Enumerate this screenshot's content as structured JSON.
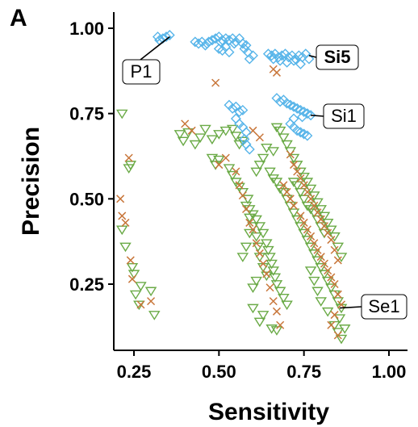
{
  "panel_label": "A",
  "chart_data": {
    "type": "scatter",
    "title": "",
    "xlabel": "Sensitivity",
    "ylabel": "Precision",
    "xlim": [
      0.2,
      1.05
    ],
    "ylim": [
      0.08,
      1.05
    ],
    "xticks": [
      0.25,
      0.5,
      0.75,
      1.0
    ],
    "xtick_labels": [
      "0.25",
      "0.50",
      "0.75",
      "1.00"
    ],
    "yticks": [
      0.25,
      0.5,
      0.75,
      1.0
    ],
    "ytick_labels": [
      "0.25",
      "0.50",
      "0.75",
      "1.00"
    ],
    "grid": false,
    "legend": "none",
    "colors": {
      "diamond": "#56B4E9",
      "triangle": "#6AAA46",
      "cross": "#C8763A"
    },
    "series": [
      {
        "marker": "diamond",
        "points": [
          [
            0.32,
            0.975
          ],
          [
            0.335,
            0.97
          ],
          [
            0.345,
            0.975
          ],
          [
            0.355,
            0.98
          ],
          [
            0.325,
            0.965
          ],
          [
            0.43,
            0.96
          ],
          [
            0.44,
            0.955
          ],
          [
            0.45,
            0.96
          ],
          [
            0.465,
            0.955
          ],
          [
            0.48,
            0.965
          ],
          [
            0.49,
            0.97
          ],
          [
            0.5,
            0.975
          ],
          [
            0.505,
            0.96
          ],
          [
            0.51,
            0.965
          ],
          [
            0.52,
            0.97
          ],
          [
            0.53,
            0.965
          ],
          [
            0.54,
            0.97
          ],
          [
            0.545,
            0.955
          ],
          [
            0.55,
            0.96
          ],
          [
            0.56,
            0.97
          ],
          [
            0.57,
            0.955
          ],
          [
            0.575,
            0.94
          ],
          [
            0.58,
            0.95
          ],
          [
            0.585,
            0.93
          ],
          [
            0.5,
            0.94
          ],
          [
            0.51,
            0.935
          ],
          [
            0.52,
            0.945
          ],
          [
            0.53,
            0.93
          ],
          [
            0.46,
            0.95
          ],
          [
            0.47,
            0.96
          ],
          [
            0.59,
            0.91
          ],
          [
            0.6,
            0.92
          ],
          [
            0.645,
            0.925
          ],
          [
            0.655,
            0.92
          ],
          [
            0.665,
            0.925
          ],
          [
            0.675,
            0.915
          ],
          [
            0.685,
            0.92
          ],
          [
            0.695,
            0.925
          ],
          [
            0.705,
            0.915
          ],
          [
            0.715,
            0.92
          ],
          [
            0.725,
            0.91
          ],
          [
            0.735,
            0.92
          ],
          [
            0.745,
            0.915
          ],
          [
            0.755,
            0.925
          ],
          [
            0.765,
            0.91
          ],
          [
            0.66,
            0.91
          ],
          [
            0.68,
            0.905
          ],
          [
            0.7,
            0.9
          ],
          [
            0.72,
            0.905
          ],
          [
            0.74,
            0.895
          ],
          [
            0.67,
            0.795
          ],
          [
            0.68,
            0.785
          ],
          [
            0.69,
            0.79
          ],
          [
            0.7,
            0.78
          ],
          [
            0.71,
            0.775
          ],
          [
            0.72,
            0.77
          ],
          [
            0.73,
            0.765
          ],
          [
            0.74,
            0.76
          ],
          [
            0.75,
            0.755
          ],
          [
            0.76,
            0.75
          ],
          [
            0.77,
            0.745
          ],
          [
            0.745,
            0.74
          ],
          [
            0.72,
            0.735
          ],
          [
            0.71,
            0.72
          ],
          [
            0.72,
            0.71
          ],
          [
            0.73,
            0.7
          ],
          [
            0.74,
            0.695
          ],
          [
            0.75,
            0.69
          ],
          [
            0.76,
            0.685
          ],
          [
            0.53,
            0.775
          ],
          [
            0.54,
            0.765
          ],
          [
            0.55,
            0.77
          ],
          [
            0.56,
            0.755
          ],
          [
            0.57,
            0.76
          ],
          [
            0.55,
            0.735
          ],
          [
            0.56,
            0.72
          ],
          [
            0.57,
            0.71
          ],
          [
            0.58,
            0.695
          ],
          [
            0.575,
            0.675
          ],
          [
            0.58,
            0.66
          ],
          [
            0.59,
            0.645
          ]
        ]
      },
      {
        "marker": "triangle",
        "points": [
          [
            0.215,
            0.75
          ],
          [
            0.235,
            0.59
          ],
          [
            0.215,
            0.41
          ],
          [
            0.225,
            0.36
          ],
          [
            0.24,
            0.6
          ],
          [
            0.245,
            0.3
          ],
          [
            0.25,
            0.28
          ],
          [
            0.255,
            0.22
          ],
          [
            0.27,
            0.245
          ],
          [
            0.3,
            0.23
          ],
          [
            0.265,
            0.19
          ],
          [
            0.31,
            0.16
          ],
          [
            0.385,
            0.69
          ],
          [
            0.395,
            0.67
          ],
          [
            0.41,
            0.695
          ],
          [
            0.43,
            0.66
          ],
          [
            0.445,
            0.68
          ],
          [
            0.46,
            0.705
          ],
          [
            0.48,
            0.675
          ],
          [
            0.5,
            0.69
          ],
          [
            0.52,
            0.7
          ],
          [
            0.54,
            0.705
          ],
          [
            0.55,
            0.685
          ],
          [
            0.56,
            0.66
          ],
          [
            0.57,
            0.67
          ],
          [
            0.48,
            0.62
          ],
          [
            0.49,
            0.6
          ],
          [
            0.5,
            0.615
          ],
          [
            0.53,
            0.59
          ],
          [
            0.54,
            0.57
          ],
          [
            0.55,
            0.55
          ],
          [
            0.56,
            0.535
          ],
          [
            0.57,
            0.52
          ],
          [
            0.585,
            0.5
          ],
          [
            0.59,
            0.47
          ],
          [
            0.6,
            0.455
          ],
          [
            0.61,
            0.44
          ],
          [
            0.62,
            0.42
          ],
          [
            0.63,
            0.4
          ],
          [
            0.64,
            0.37
          ],
          [
            0.645,
            0.35
          ],
          [
            0.65,
            0.33
          ],
          [
            0.655,
            0.31
          ],
          [
            0.66,
            0.29
          ],
          [
            0.665,
            0.27
          ],
          [
            0.67,
            0.25
          ],
          [
            0.68,
            0.23
          ],
          [
            0.69,
            0.21
          ],
          [
            0.7,
            0.19
          ],
          [
            0.655,
            0.12
          ],
          [
            0.67,
            0.115
          ],
          [
            0.62,
            0.14
          ],
          [
            0.63,
            0.16
          ],
          [
            0.6,
            0.18
          ],
          [
            0.58,
            0.48
          ],
          [
            0.59,
            0.445
          ],
          [
            0.6,
            0.42
          ],
          [
            0.61,
            0.39
          ],
          [
            0.615,
            0.36
          ],
          [
            0.62,
            0.33
          ],
          [
            0.63,
            0.3
          ],
          [
            0.64,
            0.275
          ],
          [
            0.61,
            0.26
          ],
          [
            0.6,
            0.24
          ],
          [
            0.57,
            0.33
          ],
          [
            0.58,
            0.36
          ],
          [
            0.59,
            0.4
          ],
          [
            0.67,
            0.71
          ],
          [
            0.68,
            0.7
          ],
          [
            0.69,
            0.68
          ],
          [
            0.7,
            0.66
          ],
          [
            0.71,
            0.64
          ],
          [
            0.72,
            0.62
          ],
          [
            0.73,
            0.6
          ],
          [
            0.74,
            0.58
          ],
          [
            0.75,
            0.565
          ],
          [
            0.76,
            0.55
          ],
          [
            0.77,
            0.53
          ],
          [
            0.78,
            0.51
          ],
          [
            0.79,
            0.49
          ],
          [
            0.8,
            0.47
          ],
          [
            0.81,
            0.45
          ],
          [
            0.82,
            0.43
          ],
          [
            0.83,
            0.41
          ],
          [
            0.84,
            0.39
          ],
          [
            0.85,
            0.36
          ],
          [
            0.86,
            0.33
          ],
          [
            0.65,
            0.58
          ],
          [
            0.66,
            0.56
          ],
          [
            0.67,
            0.55
          ],
          [
            0.68,
            0.53
          ],
          [
            0.69,
            0.52
          ],
          [
            0.7,
            0.5
          ],
          [
            0.71,
            0.48
          ],
          [
            0.72,
            0.46
          ],
          [
            0.73,
            0.44
          ],
          [
            0.74,
            0.42
          ],
          [
            0.75,
            0.4
          ],
          [
            0.76,
            0.38
          ],
          [
            0.77,
            0.36
          ],
          [
            0.78,
            0.34
          ],
          [
            0.79,
            0.32
          ],
          [
            0.8,
            0.3
          ],
          [
            0.81,
            0.28
          ],
          [
            0.82,
            0.26
          ],
          [
            0.83,
            0.24
          ],
          [
            0.84,
            0.22
          ],
          [
            0.85,
            0.2
          ],
          [
            0.86,
            0.18
          ],
          [
            0.855,
            0.15
          ],
          [
            0.84,
            0.13
          ],
          [
            0.85,
            0.11
          ],
          [
            0.82,
            0.17
          ],
          [
            0.8,
            0.2
          ],
          [
            0.79,
            0.23
          ],
          [
            0.78,
            0.26
          ],
          [
            0.77,
            0.29
          ],
          [
            0.72,
            0.55
          ],
          [
            0.73,
            0.54
          ],
          [
            0.74,
            0.52
          ],
          [
            0.75,
            0.5
          ],
          [
            0.76,
            0.48
          ],
          [
            0.77,
            0.47
          ],
          [
            0.78,
            0.46
          ],
          [
            0.79,
            0.44
          ],
          [
            0.8,
            0.42
          ],
          [
            0.81,
            0.4
          ],
          [
            0.66,
            0.64
          ],
          [
            0.64,
            0.65
          ],
          [
            0.63,
            0.62
          ],
          [
            0.62,
            0.6
          ],
          [
            0.61,
            0.58
          ],
          [
            0.87,
            0.12
          ],
          [
            0.86,
            0.09
          ]
        ]
      },
      {
        "marker": "cross",
        "points": [
          [
            0.21,
            0.5
          ],
          [
            0.215,
            0.45
          ],
          [
            0.225,
            0.43
          ],
          [
            0.235,
            0.62
          ],
          [
            0.24,
            0.32
          ],
          [
            0.245,
            0.265
          ],
          [
            0.27,
            0.19
          ],
          [
            0.3,
            0.2
          ],
          [
            0.4,
            0.72
          ],
          [
            0.42,
            0.7
          ],
          [
            0.49,
            0.84
          ],
          [
            0.5,
            0.6
          ],
          [
            0.52,
            0.62
          ],
          [
            0.55,
            0.58
          ],
          [
            0.56,
            0.54
          ],
          [
            0.57,
            0.51
          ],
          [
            0.58,
            0.47
          ],
          [
            0.59,
            0.43
          ],
          [
            0.6,
            0.41
          ],
          [
            0.61,
            0.37
          ],
          [
            0.62,
            0.34
          ],
          [
            0.63,
            0.31
          ],
          [
            0.64,
            0.28
          ],
          [
            0.65,
            0.24
          ],
          [
            0.66,
            0.2
          ],
          [
            0.67,
            0.17
          ],
          [
            0.68,
            0.13
          ],
          [
            0.6,
            0.7
          ],
          [
            0.62,
            0.68
          ],
          [
            0.66,
            0.88
          ],
          [
            0.67,
            0.87
          ],
          [
            0.71,
            0.63
          ],
          [
            0.72,
            0.6
          ],
          [
            0.73,
            0.58
          ],
          [
            0.74,
            0.56
          ],
          [
            0.75,
            0.54
          ],
          [
            0.76,
            0.52
          ],
          [
            0.77,
            0.5
          ],
          [
            0.78,
            0.48
          ],
          [
            0.79,
            0.46
          ],
          [
            0.8,
            0.44
          ],
          [
            0.81,
            0.42
          ],
          [
            0.82,
            0.4
          ],
          [
            0.83,
            0.38
          ],
          [
            0.84,
            0.35
          ],
          [
            0.85,
            0.32
          ],
          [
            0.74,
            0.45
          ],
          [
            0.75,
            0.43
          ],
          [
            0.76,
            0.41
          ],
          [
            0.77,
            0.39
          ],
          [
            0.78,
            0.37
          ],
          [
            0.79,
            0.35
          ],
          [
            0.8,
            0.33
          ],
          [
            0.81,
            0.31
          ],
          [
            0.82,
            0.29
          ],
          [
            0.83,
            0.27
          ],
          [
            0.84,
            0.25
          ],
          [
            0.85,
            0.22
          ],
          [
            0.86,
            0.19
          ],
          [
            0.84,
            0.16
          ],
          [
            0.83,
            0.13
          ],
          [
            0.85,
            0.1
          ],
          [
            0.69,
            0.54
          ],
          [
            0.7,
            0.52
          ],
          [
            0.71,
            0.5
          ],
          [
            0.72,
            0.48
          ]
        ]
      }
    ],
    "annotations": [
      {
        "text": "P1",
        "bold": false,
        "point": [
          0.355,
          0.975
        ]
      },
      {
        "text": "Si5",
        "bold": true,
        "point": [
          0.765,
          0.92
        ]
      },
      {
        "text": "Si1",
        "bold": false,
        "point": [
          0.77,
          0.745
        ]
      },
      {
        "text": "Se1",
        "bold": false,
        "point": [
          0.855,
          0.18
        ]
      }
    ]
  }
}
